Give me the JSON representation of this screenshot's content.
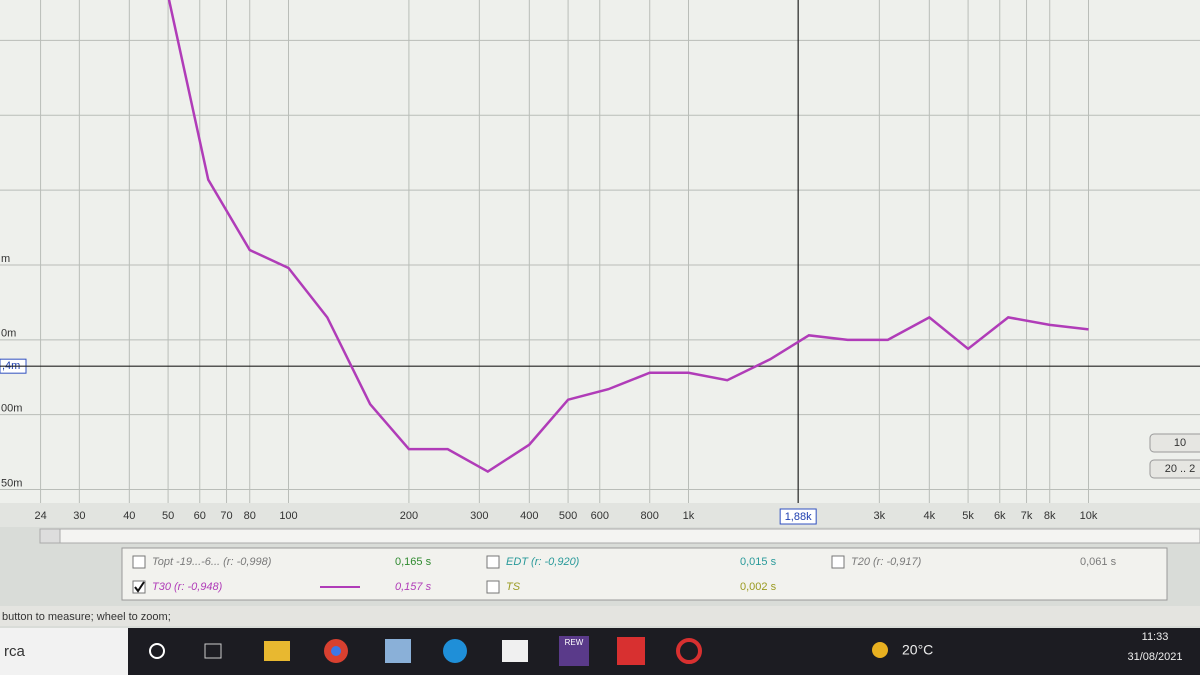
{
  "chart_data": {
    "type": "line",
    "x_scale": "log",
    "xlim": [
      19,
      19000
    ],
    "ylim": [
      0.041,
      0.377
    ],
    "xticks": [
      24,
      30,
      40,
      50,
      60,
      70,
      80,
      100,
      200,
      300,
      400,
      500,
      600,
      800,
      {
        "value": 1000,
        "label": "1k"
      },
      {
        "value": 3000,
        "label": "3k"
      },
      {
        "value": 4000,
        "label": "4k"
      },
      {
        "value": 5000,
        "label": "5k"
      },
      {
        "value": 6000,
        "label": "6k"
      },
      {
        "value": 7000,
        "label": "7k"
      },
      {
        "value": 8000,
        "label": "8k"
      },
      {
        "value": 10000,
        "label": "10k"
      }
    ],
    "yticks": [
      {
        "value": 0.2,
        "label": "m"
      },
      {
        "value": 0.15,
        "label": "0m"
      },
      {
        "value": 0.1,
        "label": "00m"
      },
      {
        "value": 0.05,
        "label": "50m"
      }
    ],
    "y_minor_grid": [
      0.25,
      0.3,
      0.35
    ],
    "grid": true,
    "cursor": {
      "x": {
        "value": 1880,
        "label": "1,88k"
      },
      "y": {
        "value": 0.1324,
        "label": ",4m"
      }
    },
    "series": [
      {
        "name": "T30 (r: -0,948)",
        "color": "#b03cb8",
        "checked": true,
        "result": "0,157 s",
        "x": [
          50,
          63,
          80,
          100,
          125,
          160,
          200,
          250,
          315,
          400,
          500,
          630,
          800,
          1000,
          1250,
          1600,
          2000,
          2500,
          3150,
          4000,
          5000,
          6300,
          8000,
          10000
        ],
        "values": [
          0.38,
          0.257,
          0.21,
          0.198,
          0.165,
          0.107,
          0.077,
          0.077,
          0.062,
          0.08,
          0.11,
          0.117,
          0.128,
          0.128,
          0.123,
          0.137,
          0.153,
          0.15,
          0.15,
          0.165,
          0.144,
          0.165,
          0.16,
          0.157
        ]
      }
    ]
  },
  "other_results": [
    {
      "name": "Topt -19...-6... (r: -0,998)",
      "value": "0,165 s",
      "checked": false,
      "color": "#7a7a7a",
      "value_color": "#2f8a2f"
    },
    {
      "name": "EDT (r: -0,920)",
      "value": "0,015 s",
      "checked": false,
      "color": "#2a9a9a",
      "value_color": "#2a9a9a"
    },
    {
      "name": "T20 (r: -0,917)",
      "value": "0,061 s",
      "checked": false,
      "color": "#7a7a7a",
      "value_color": "#7a7a7a"
    },
    {
      "name": "TS",
      "value": "0,002 s",
      "checked": false,
      "color": "#9a9a20",
      "value_color": "#9a9a20"
    }
  ],
  "side_buttons": [
    "10",
    "20 .. 2"
  ],
  "status_bar": "button to measure; wheel to zoom;",
  "taskbar": {
    "search": "rca",
    "app_label": "REW",
    "weather": "20°C",
    "time": "11:33",
    "date": "31/08/2021"
  }
}
